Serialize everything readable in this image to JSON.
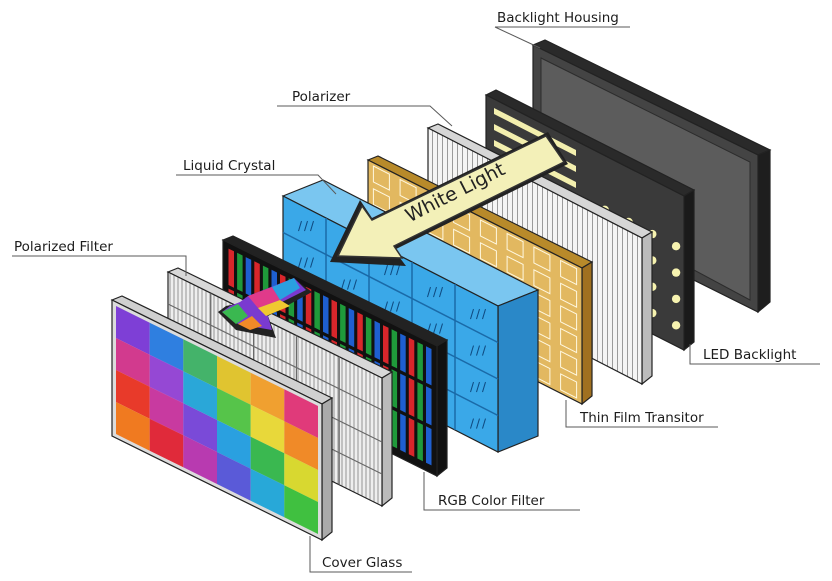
{
  "labels": {
    "backlight_housing": "Backlight Housing",
    "polarizer": "Polarizer",
    "liquid_crystal": "Liquid Crystal",
    "polarized_filter": "Polarized Filter",
    "led_backlight": "LED Backlight",
    "thin_film_transistor": "Thin Film Transitor",
    "rgb_color_filter": "RGB Color Filter",
    "cover_glass": "Cover Glass"
  },
  "arrow": {
    "text": "White Light",
    "color": "#f3f0b8"
  },
  "colors": {
    "rgb_stripes": [
      "#d8262b",
      "#1f9a3a",
      "#1e5fd0"
    ],
    "cover_glass_grid": [
      [
        "#7e3fd6",
        "#2f7fe0",
        "#44b36a",
        "#e0c430",
        "#f0a030",
        "#e03a7a"
      ],
      [
        "#d23a8e",
        "#9548d4",
        "#2aa7d8",
        "#56c44a",
        "#e8d83a",
        "#f08a28"
      ],
      [
        "#e83a2a",
        "#c83aa0",
        "#7a4ad8",
        "#2aa0e0",
        "#3ab850",
        "#d8d830"
      ],
      [
        "#f07a20",
        "#e02a3a",
        "#b83ab0",
        "#5a5ad8",
        "#28a8d8",
        "#40c040"
      ]
    ],
    "liquid_crystal": "#3aa8e8",
    "tft": "#d8a848",
    "led": "#f7f3b0",
    "housing": "#3a3a3a"
  }
}
